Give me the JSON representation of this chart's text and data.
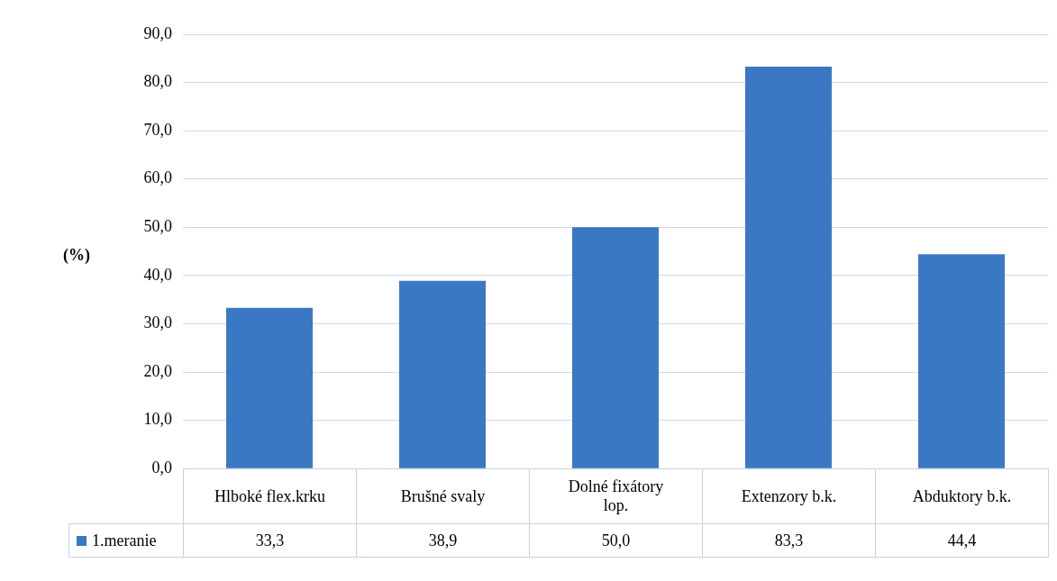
{
  "chart_data": {
    "type": "bar",
    "ylabel": "(%)",
    "categories": [
      "Hlboké flex.krku",
      "Brušné  svaly",
      "Dolné fixátory lop.",
      "Extenzory b.k.",
      "Abduktory b.k."
    ],
    "series": [
      {
        "name": "1.meranie",
        "color": "#3a78c4",
        "values": [
          33.3,
          38.9,
          50.0,
          83.3,
          44.4
        ],
        "value_labels": [
          "33,3",
          "38,9",
          "50,0",
          "83,3",
          "44,4"
        ]
      }
    ],
    "ylim": [
      0,
      90
    ],
    "yticks": [
      {
        "value": 0,
        "label": "0,0"
      },
      {
        "value": 10,
        "label": "10,0"
      },
      {
        "value": 20,
        "label": "20,0"
      },
      {
        "value": 30,
        "label": "30,0"
      },
      {
        "value": 40,
        "label": "40,0"
      },
      {
        "value": 50,
        "label": "50,0"
      },
      {
        "value": 60,
        "label": "60,0"
      },
      {
        "value": 70,
        "label": "70,0"
      },
      {
        "value": 80,
        "label": "80,0"
      },
      {
        "value": 90,
        "label": "90,0"
      }
    ],
    "grid": "y",
    "legend": "bottom"
  }
}
